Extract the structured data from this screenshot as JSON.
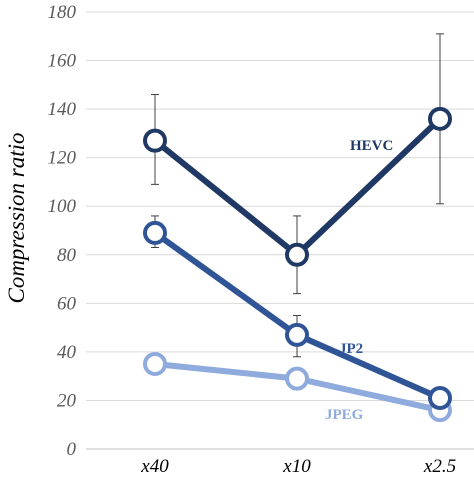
{
  "chart_data": {
    "type": "line",
    "title": "",
    "xlabel": "",
    "ylabel": "Compression ratio",
    "categories": [
      "x40",
      "x10",
      "x2.5"
    ],
    "ylim": [
      0,
      180
    ],
    "yticks": [
      0,
      20,
      40,
      60,
      80,
      100,
      120,
      140,
      160,
      180
    ],
    "grid": true,
    "legend": "none (inline series labels)",
    "series": [
      {
        "name": "HEVC",
        "color": "#1f3864",
        "values": [
          127,
          80,
          136
        ],
        "error_low": [
          109,
          64,
          101
        ],
        "error_high": [
          146,
          96,
          171
        ]
      },
      {
        "name": "JP2",
        "color": "#2f5597",
        "values": [
          89,
          47,
          21
        ],
        "error_low": [
          83,
          38,
          null
        ],
        "error_high": [
          96,
          55,
          null
        ]
      },
      {
        "name": "JPEG",
        "color": "#8faadc",
        "values": [
          35,
          29,
          16
        ]
      }
    ]
  }
}
